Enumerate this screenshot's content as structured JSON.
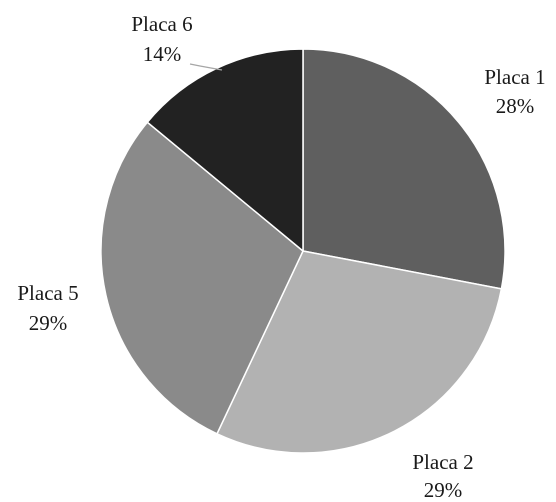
{
  "chart_data": {
    "type": "pie",
    "title": "",
    "slices": [
      {
        "label": "Placa 1",
        "value": 28,
        "value_label": "28%",
        "color": "#5f5f5f"
      },
      {
        "label": "Placa 2",
        "value": 29,
        "value_label": "29%",
        "color": "#b2b2b2"
      },
      {
        "label": "Placa 5",
        "value": 29,
        "value_label": "29%",
        "color": "#8a8a8a"
      },
      {
        "label": "Placa 6",
        "value": 14,
        "value_label": "14%",
        "color": "#222222"
      }
    ],
    "start": "12 o'clock",
    "direction": "clockwise",
    "slice_border_color": "#ffffff",
    "legend": "none"
  }
}
